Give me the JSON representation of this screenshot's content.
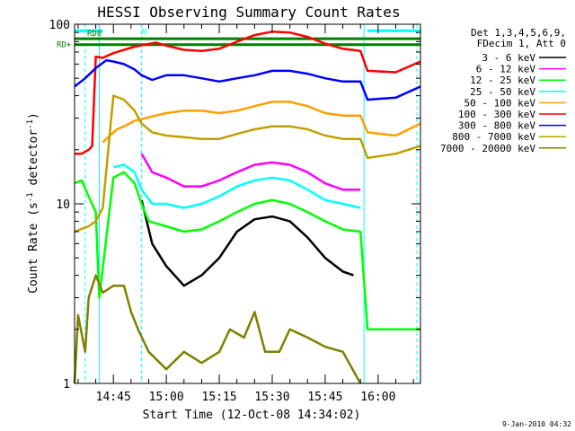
{
  "chart_data": {
    "type": "line",
    "title": "HESSI Observing Summary Count Rates",
    "xlabel": "Start Time (12-Oct-08 14:34:02)",
    "ylabel": "Count Rate (s",
    "ylabel_sup": "-1",
    "ylabel_tail": " detector",
    "ylabel_end": ")",
    "footer": "9-Jan-2010 04:32",
    "xlim": [
      "14:34",
      "16:12"
    ],
    "ylim": [
      1,
      100
    ],
    "yscale": "log",
    "x_ticks": [
      "14:45",
      "15:00",
      "15:15",
      "15:30",
      "15:45",
      "16:00"
    ],
    "y_ticks": [
      1,
      10,
      100
    ],
    "y_tick_labels": [
      "1",
      "10",
      "100"
    ],
    "legend_header": [
      "Det 1,3,4,5,6,9,",
      "FDecim 1, Att 0"
    ],
    "legend_position": "right",
    "flags": [
      {
        "label": "N",
        "color": "#00ffff",
        "segments": [
          [
            "14:34",
            "14:42"
          ],
          [
            "15:57",
            "16:12"
          ]
        ],
        "level": 92
      },
      {
        "label": "RD0",
        "color": "#008000",
        "segments": [
          [
            "14:34",
            "16:12"
          ]
        ],
        "level": 83
      },
      {
        "label": "RD+",
        "color": "#008000",
        "segments": [
          [
            "14:34",
            "16:12"
          ]
        ],
        "level": 77
      }
    ],
    "vertical_markers": [
      {
        "time": "14:37",
        "color": "#00ffff",
        "style": "dashed"
      },
      {
        "time": "14:41",
        "color": "#00ffff",
        "style": "solid"
      },
      {
        "time": "14:53",
        "color": "#00ffff",
        "style": "dashed"
      },
      {
        "time": "15:56",
        "color": "#00ffff",
        "style": "solid"
      },
      {
        "time": "16:11",
        "color": "#00ffff",
        "style": "dashed"
      }
    ],
    "series": [
      {
        "name": "3 - 6 keV",
        "color": "#000000",
        "points": [
          [
            "14:53",
            10.5
          ],
          [
            "14:56",
            6
          ],
          [
            "15:00",
            4.5
          ],
          [
            "15:05",
            3.5
          ],
          [
            "15:10",
            4
          ],
          [
            "15:15",
            5
          ],
          [
            "15:20",
            7
          ],
          [
            "15:25",
            8.2
          ],
          [
            "15:30",
            8.5
          ],
          [
            "15:35",
            8
          ],
          [
            "15:40",
            6.5
          ],
          [
            "15:45",
            5
          ],
          [
            "15:50",
            4.2
          ],
          [
            "15:53",
            4
          ]
        ]
      },
      {
        "name": "6 - 12 keV",
        "color": "#ff00ff",
        "points": [
          [
            "14:53",
            19
          ],
          [
            "14:56",
            15
          ],
          [
            "15:00",
            14
          ],
          [
            "15:05",
            12.5
          ],
          [
            "15:10",
            12.5
          ],
          [
            "15:15",
            13.5
          ],
          [
            "15:20",
            15
          ],
          [
            "15:25",
            16.5
          ],
          [
            "15:30",
            17
          ],
          [
            "15:35",
            16.5
          ],
          [
            "15:40",
            15
          ],
          [
            "15:45",
            13
          ],
          [
            "15:50",
            12
          ],
          [
            "15:55",
            12
          ]
        ]
      },
      {
        "name": "12 - 25 keV",
        "color": "#00ff00",
        "points": [
          [
            "14:34",
            13
          ],
          [
            "14:36",
            13.5
          ],
          [
            "14:38",
            11
          ],
          [
            "14:40",
            9
          ],
          [
            "14:41",
            3
          ],
          [
            "14:43",
            6.5
          ],
          [
            "14:45",
            14
          ],
          [
            "14:48",
            15
          ],
          [
            "14:51",
            13
          ],
          [
            "14:53",
            10
          ],
          [
            "14:55",
            8
          ],
          [
            "15:00",
            7.5
          ],
          [
            "15:05",
            7
          ],
          [
            "15:10",
            7.2
          ],
          [
            "15:15",
            8
          ],
          [
            "15:20",
            9
          ],
          [
            "15:25",
            10
          ],
          [
            "15:30",
            10.5
          ],
          [
            "15:35",
            10
          ],
          [
            "15:40",
            9
          ],
          [
            "15:45",
            8
          ],
          [
            "15:50",
            7.2
          ],
          [
            "15:55",
            7
          ],
          [
            "15:57",
            2
          ],
          [
            "16:12",
            2
          ]
        ]
      },
      {
        "name": "25 - 50 keV",
        "color": "#00ffff",
        "points": [
          [
            "14:45",
            16
          ],
          [
            "14:48",
            16.5
          ],
          [
            "14:51",
            15
          ],
          [
            "14:53",
            12
          ],
          [
            "14:56",
            10
          ],
          [
            "15:00",
            10
          ],
          [
            "15:05",
            9.5
          ],
          [
            "15:10",
            10
          ],
          [
            "15:15",
            11
          ],
          [
            "15:20",
            12.5
          ],
          [
            "15:25",
            13.5
          ],
          [
            "15:30",
            14
          ],
          [
            "15:35",
            13.5
          ],
          [
            "15:40",
            12
          ],
          [
            "15:45",
            10.5
          ],
          [
            "15:50",
            10
          ],
          [
            "15:55",
            9.5
          ]
        ]
      },
      {
        "name": "50 - 100 keV",
        "color": "#ffa000",
        "points": [
          [
            "14:42",
            22
          ],
          [
            "14:44",
            24
          ],
          [
            "14:46",
            26
          ],
          [
            "14:48",
            27
          ],
          [
            "14:51",
            29
          ],
          [
            "14:54",
            30
          ],
          [
            "14:57",
            31
          ],
          [
            "15:00",
            32
          ],
          [
            "15:05",
            33
          ],
          [
            "15:10",
            33
          ],
          [
            "15:15",
            32
          ],
          [
            "15:20",
            33
          ],
          [
            "15:25",
            35
          ],
          [
            "15:30",
            37
          ],
          [
            "15:35",
            37
          ],
          [
            "15:40",
            35
          ],
          [
            "15:45",
            32
          ],
          [
            "15:50",
            31
          ],
          [
            "15:55",
            31
          ],
          [
            "15:57",
            25
          ],
          [
            "16:05",
            24
          ],
          [
            "16:12",
            28
          ]
        ]
      },
      {
        "name": "100 - 300 keV",
        "color": "#ff0000",
        "points": [
          [
            "14:34",
            19
          ],
          [
            "14:36",
            19
          ],
          [
            "14:38",
            20
          ],
          [
            "14:39",
            21
          ],
          [
            "14:40",
            66
          ],
          [
            "14:42",
            65
          ],
          [
            "14:45",
            69
          ],
          [
            "14:48",
            72
          ],
          [
            "14:51",
            75
          ],
          [
            "14:54",
            77
          ],
          [
            "14:57",
            79
          ],
          [
            "15:00",
            76
          ],
          [
            "15:05",
            72
          ],
          [
            "15:10",
            71
          ],
          [
            "15:15",
            73
          ],
          [
            "15:20",
            80
          ],
          [
            "15:25",
            87
          ],
          [
            "15:30",
            91
          ],
          [
            "15:35",
            90
          ],
          [
            "15:40",
            85
          ],
          [
            "15:45",
            78
          ],
          [
            "15:50",
            73
          ],
          [
            "15:55",
            71
          ],
          [
            "15:57",
            55
          ],
          [
            "16:05",
            54
          ],
          [
            "16:12",
            62
          ]
        ]
      },
      {
        "name": "300 - 800 keV",
        "color": "#0000ff",
        "points": [
          [
            "14:34",
            45
          ],
          [
            "14:37",
            50
          ],
          [
            "14:40",
            57
          ],
          [
            "14:43",
            63
          ],
          [
            "14:45",
            62
          ],
          [
            "14:48",
            60
          ],
          [
            "14:51",
            56
          ],
          [
            "14:53",
            52
          ],
          [
            "14:56",
            49
          ],
          [
            "15:00",
            52
          ],
          [
            "15:05",
            52
          ],
          [
            "15:10",
            50
          ],
          [
            "15:15",
            48
          ],
          [
            "15:20",
            50
          ],
          [
            "15:25",
            52
          ],
          [
            "15:30",
            55
          ],
          [
            "15:35",
            55
          ],
          [
            "15:40",
            53
          ],
          [
            "15:45",
            50
          ],
          [
            "15:50",
            48
          ],
          [
            "15:55",
            48
          ],
          [
            "15:57",
            38
          ],
          [
            "16:05",
            39
          ],
          [
            "16:12",
            45
          ]
        ]
      },
      {
        "name": "800 - 7000 keV",
        "color": "#c0a000",
        "points": [
          [
            "14:34",
            7
          ],
          [
            "14:38",
            7.5
          ],
          [
            "14:40",
            8
          ],
          [
            "14:42",
            9.5
          ],
          [
            "14:45",
            40
          ],
          [
            "14:48",
            38
          ],
          [
            "14:51",
            33
          ],
          [
            "14:53",
            28
          ],
          [
            "14:56",
            25
          ],
          [
            "15:00",
            24
          ],
          [
            "15:05",
            23.5
          ],
          [
            "15:10",
            23
          ],
          [
            "15:15",
            23
          ],
          [
            "15:20",
            24.5
          ],
          [
            "15:25",
            26
          ],
          [
            "15:30",
            27
          ],
          [
            "15:35",
            27
          ],
          [
            "15:40",
            26
          ],
          [
            "15:45",
            24
          ],
          [
            "15:50",
            23
          ],
          [
            "15:55",
            23
          ],
          [
            "15:57",
            18
          ],
          [
            "16:05",
            19
          ],
          [
            "16:12",
            21
          ]
        ]
      },
      {
        "name": "7000 - 20000 keV",
        "color": "#808000",
        "points": [
          [
            "14:34",
            1
          ],
          [
            "14:35",
            2.4
          ],
          [
            "14:37",
            1.5
          ],
          [
            "14:38",
            3
          ],
          [
            "14:40",
            4
          ],
          [
            "14:42",
            3.2
          ],
          [
            "14:45",
            3.5
          ],
          [
            "14:48",
            3.5
          ],
          [
            "14:50",
            2.5
          ],
          [
            "14:52",
            2
          ],
          [
            "14:55",
            1.5
          ],
          [
            "15:00",
            1.2
          ],
          [
            "15:05",
            1.5
          ],
          [
            "15:10",
            1.3
          ],
          [
            "15:15",
            1.5
          ],
          [
            "15:18",
            2
          ],
          [
            "15:22",
            1.8
          ],
          [
            "15:25",
            2.5
          ],
          [
            "15:28",
            1.5
          ],
          [
            "15:32",
            1.5
          ],
          [
            "15:35",
            2
          ],
          [
            "15:40",
            1.8
          ],
          [
            "15:45",
            1.6
          ],
          [
            "15:50",
            1.5
          ],
          [
            "15:55",
            1
          ]
        ]
      }
    ]
  }
}
